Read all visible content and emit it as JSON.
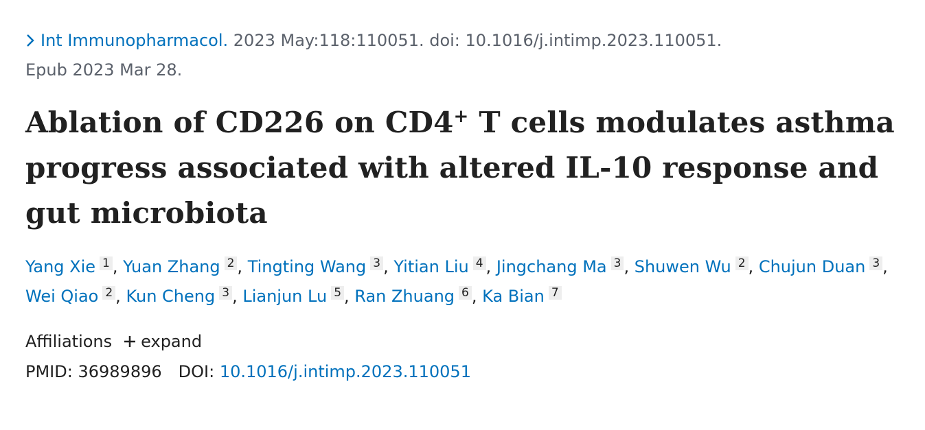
{
  "citation": {
    "journal": "Int Immunopharmacol.",
    "details": "2023 May:118:110051. doi: 10.1016/j.intimp.2023.110051.",
    "epub": "Epub 2023 Mar 28."
  },
  "title": {
    "before": "Ablation of CD226 on CD4",
    "sup": "+",
    "after": " T cells modulates asthma progress associated with altered IL-10 response and gut microbiota"
  },
  "author_separator": ",",
  "authors": [
    {
      "name": "Yang Xie",
      "affiliation": 1
    },
    {
      "name": "Yuan Zhang",
      "affiliation": 2
    },
    {
      "name": "Tingting Wang",
      "affiliation": 3
    },
    {
      "name": "Yitian Liu",
      "affiliation": 4
    },
    {
      "name": "Jingchang Ma",
      "affiliation": 3
    },
    {
      "name": "Shuwen Wu",
      "affiliation": 2
    },
    {
      "name": "Chujun Duan",
      "affiliation": 3
    },
    {
      "name": "Wei Qiao",
      "affiliation": 2
    },
    {
      "name": "Kun Cheng",
      "affiliation": 3
    },
    {
      "name": "Lianjun Lu",
      "affiliation": 5
    },
    {
      "name": "Ran Zhuang",
      "affiliation": 6
    },
    {
      "name": "Ka Bian",
      "affiliation": 7
    }
  ],
  "affiliations": {
    "label": "Affiliations",
    "toggle": "expand"
  },
  "identifiers": {
    "pmid_label": "PMID:",
    "pmid": "36989896",
    "doi_label": "DOI:",
    "doi": "10.1016/j.intimp.2023.110051"
  }
}
